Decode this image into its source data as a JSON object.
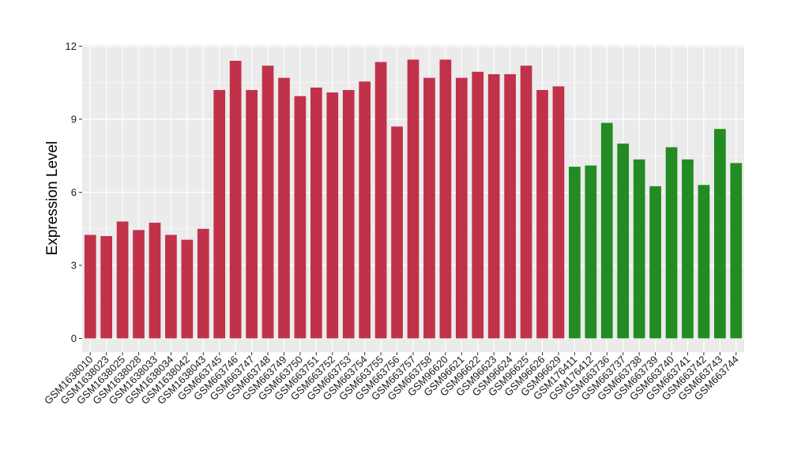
{
  "chart_data": {
    "type": "bar",
    "title": "",
    "xlabel": "",
    "ylabel": "Expression Level",
    "ylim": [
      0,
      12
    ],
    "yticks": [
      0,
      3,
      6,
      9,
      12
    ],
    "grid": true,
    "legend": "none",
    "panel_background": "#ebebeb",
    "grid_color": "#ffffff",
    "colors": {
      "group1": "#c2314a",
      "group2": "#238b23"
    },
    "categories": [
      "GSM1638010",
      "GSM1638023",
      "GSM1638025",
      "GSM1638028",
      "GSM1638033",
      "GSM1638034",
      "GSM1638042",
      "GSM1638043",
      "GSM663745",
      "GSM663746",
      "GSM663747",
      "GSM663748",
      "GSM663749",
      "GSM663750",
      "GSM663751",
      "GSM663752",
      "GSM663753",
      "GSM663754",
      "GSM663755",
      "GSM663756",
      "GSM663757",
      "GSM663758",
      "GSM96620",
      "GSM96621",
      "GSM96622",
      "GSM96623",
      "GSM96624",
      "GSM96625",
      "GSM96626",
      "GSM96629",
      "GSM176411",
      "GSM176412",
      "GSM663736",
      "GSM663737",
      "GSM663738",
      "GSM663739",
      "GSM663740",
      "GSM663741",
      "GSM663742",
      "GSM663743",
      "GSM663744"
    ],
    "values": [
      4.25,
      4.2,
      4.8,
      4.45,
      4.75,
      4.25,
      4.05,
      4.5,
      10.2,
      11.4,
      10.2,
      11.2,
      10.7,
      9.95,
      10.3,
      10.1,
      10.2,
      10.55,
      11.35,
      8.7,
      11.45,
      10.7,
      11.45,
      10.7,
      10.95,
      10.85,
      10.85,
      11.2,
      10.2,
      10.35,
      7.05,
      7.1,
      8.85,
      8.0,
      7.35,
      6.25,
      7.85,
      7.35,
      6.3,
      8.6,
      7.2
    ],
    "groups": [
      "group1",
      "group1",
      "group1",
      "group1",
      "group1",
      "group1",
      "group1",
      "group1",
      "group1",
      "group1",
      "group1",
      "group1",
      "group1",
      "group1",
      "group1",
      "group1",
      "group1",
      "group1",
      "group1",
      "group1",
      "group1",
      "group1",
      "group1",
      "group1",
      "group1",
      "group1",
      "group1",
      "group1",
      "group1",
      "group1",
      "group2",
      "group2",
      "group2",
      "group2",
      "group2",
      "group2",
      "group2",
      "group2",
      "group2",
      "group2",
      "group2"
    ]
  }
}
